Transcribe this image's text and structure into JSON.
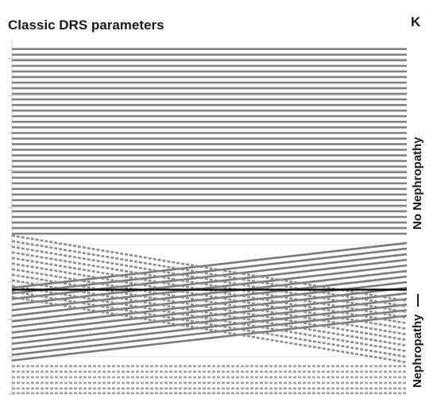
{
  "chart_data": {
    "type": "line",
    "title": "Classic DRS parameters",
    "panel_label": "K",
    "group_labels": [
      "No Nephropathy",
      "Nephropathy"
    ],
    "ylim": [
      0,
      19
    ],
    "grid": true,
    "threshold": 5.6,
    "series": [
      {
        "style": "solid",
        "color": "#808080",
        "segments": [
          [
            [
              0,
              18.5
            ],
            [
              1,
              18.5
            ]
          ],
          [
            [
              0,
              18.2
            ],
            [
              1,
              18.2
            ]
          ],
          [
            [
              0,
              17.9
            ],
            [
              1,
              17.9
            ]
          ],
          [
            [
              0,
              17.6
            ],
            [
              1,
              17.6
            ]
          ],
          [
            [
              0,
              17.3
            ],
            [
              1,
              17.3
            ]
          ],
          [
            [
              0,
              17.0
            ],
            [
              1,
              17.0
            ]
          ],
          [
            [
              0,
              16.7
            ],
            [
              1,
              16.7
            ]
          ],
          [
            [
              0,
              16.4
            ],
            [
              1,
              16.4
            ]
          ],
          [
            [
              0,
              16.1
            ],
            [
              1,
              16.1
            ]
          ],
          [
            [
              0,
              15.8
            ],
            [
              1,
              15.8
            ]
          ],
          [
            [
              0,
              15.5
            ],
            [
              1,
              15.5
            ]
          ],
          [
            [
              0,
              15.2
            ],
            [
              1,
              15.2
            ]
          ],
          [
            [
              0,
              14.9
            ],
            [
              1,
              14.9
            ]
          ],
          [
            [
              0,
              14.6
            ],
            [
              1,
              14.6
            ]
          ],
          [
            [
              0,
              14.3
            ],
            [
              1,
              14.3
            ]
          ],
          [
            [
              0,
              14.0
            ],
            [
              1,
              14.0
            ]
          ],
          [
            [
              0,
              13.7
            ],
            [
              1,
              13.7
            ]
          ],
          [
            [
              0,
              13.4
            ],
            [
              1,
              13.4
            ]
          ],
          [
            [
              0,
              13.1
            ],
            [
              1,
              13.1
            ]
          ],
          [
            [
              0,
              12.8
            ],
            [
              1,
              12.8
            ]
          ],
          [
            [
              0,
              12.5
            ],
            [
              1,
              12.5
            ]
          ],
          [
            [
              0,
              12.2
            ],
            [
              1,
              12.2
            ]
          ],
          [
            [
              0,
              11.9
            ],
            [
              1,
              11.9
            ]
          ],
          [
            [
              0,
              11.6
            ],
            [
              1,
              11.6
            ]
          ],
          [
            [
              0,
              11.3
            ],
            [
              1,
              11.3
            ]
          ],
          [
            [
              0,
              11.0
            ],
            [
              1,
              11.0
            ]
          ],
          [
            [
              0,
              10.7
            ],
            [
              1,
              10.7
            ]
          ],
          [
            [
              0,
              10.4
            ],
            [
              1,
              10.4
            ]
          ],
          [
            [
              0,
              10.1
            ],
            [
              1,
              10.1
            ]
          ],
          [
            [
              0,
              9.8
            ],
            [
              1,
              9.8
            ]
          ],
          [
            [
              0,
              9.5
            ],
            [
              1,
              9.5
            ]
          ],
          [
            [
              0,
              9.2
            ],
            [
              1,
              9.2
            ]
          ],
          [
            [
              0,
              8.9
            ],
            [
              1,
              8.9
            ]
          ],
          [
            [
              0,
              8.6
            ],
            [
              1,
              8.6
            ]
          ]
        ]
      },
      {
        "style": "solid",
        "color": "#7a7a7a",
        "segments": [
          [
            [
              0,
              5.7
            ],
            [
              1,
              8.1
            ]
          ],
          [
            [
              0,
              5.4
            ],
            [
              1,
              7.8
            ]
          ],
          [
            [
              0,
              5.1
            ],
            [
              1,
              7.5
            ]
          ],
          [
            [
              0,
              4.8
            ],
            [
              1,
              7.2
            ]
          ],
          [
            [
              0,
              4.5
            ],
            [
              1,
              6.9
            ]
          ],
          [
            [
              0,
              4.2
            ],
            [
              1,
              6.6
            ]
          ],
          [
            [
              0,
              3.9
            ],
            [
              1,
              6.3
            ]
          ],
          [
            [
              0,
              3.6
            ],
            [
              1,
              6.0
            ]
          ],
          [
            [
              0,
              3.3
            ],
            [
              1,
              5.7
            ]
          ],
          [
            [
              0,
              3.0
            ],
            [
              1,
              5.4
            ]
          ],
          [
            [
              0,
              2.7
            ],
            [
              1,
              5.1
            ]
          ],
          [
            [
              0,
              2.4
            ],
            [
              1,
              4.8
            ]
          ],
          [
            [
              0,
              2.1
            ],
            [
              1,
              4.5
            ]
          ],
          [
            [
              0,
              1.8
            ],
            [
              1,
              4.2
            ]
          ]
        ]
      },
      {
        "style": "dashed",
        "color": "#8c8c8c",
        "segments": [
          [
            [
              0,
              8.5
            ],
            [
              1,
              5.0
            ]
          ],
          [
            [
              0,
              8.2
            ],
            [
              1,
              4.7
            ]
          ],
          [
            [
              0,
              7.9
            ],
            [
              1,
              4.4
            ]
          ],
          [
            [
              0,
              7.6
            ],
            [
              1,
              4.1
            ]
          ],
          [
            [
              0,
              7.3
            ],
            [
              1,
              3.8
            ]
          ],
          [
            [
              0,
              7.0
            ],
            [
              1,
              3.5
            ]
          ],
          [
            [
              0,
              6.7
            ],
            [
              1,
              3.2
            ]
          ],
          [
            [
              0,
              6.4
            ],
            [
              1,
              2.9
            ]
          ],
          [
            [
              0,
              6.1
            ],
            [
              1,
              2.6
            ]
          ],
          [
            [
              0,
              5.8
            ],
            [
              1,
              2.3
            ]
          ],
          [
            [
              0,
              5.5
            ],
            [
              1,
              2.0
            ]
          ],
          [
            [
              0,
              5.2
            ],
            [
              1,
              1.7
            ]
          ]
        ]
      },
      {
        "style": "dashed",
        "color": "#a0a0a0",
        "segments": [
          [
            [
              0,
              1.5
            ],
            [
              1,
              1.5
            ]
          ],
          [
            [
              0,
              1.2
            ],
            [
              1,
              1.2
            ]
          ],
          [
            [
              0,
              0.9
            ],
            [
              1,
              0.9
            ]
          ],
          [
            [
              0,
              0.6
            ],
            [
              1,
              0.6
            ]
          ],
          [
            [
              0,
              0.3
            ],
            [
              1,
              0.3
            ]
          ],
          [
            [
              0,
              0.05
            ],
            [
              1,
              0.05
            ]
          ]
        ]
      }
    ]
  }
}
